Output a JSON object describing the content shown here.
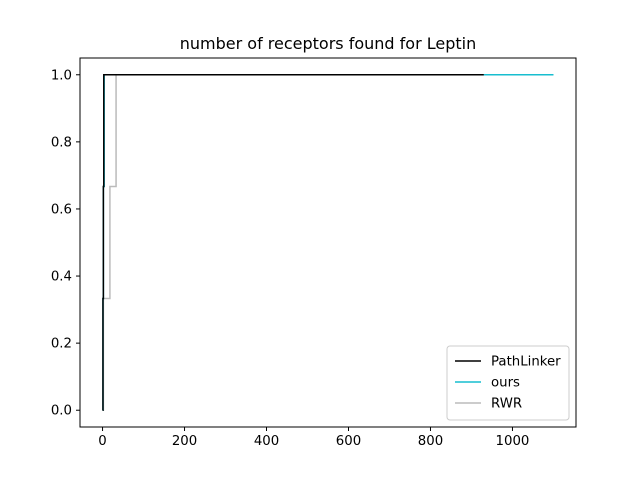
{
  "chart_data": {
    "type": "line",
    "title": "number of receptors found for Leptin",
    "xlabel": "",
    "ylabel": "",
    "xlim": [
      -55,
      1155
    ],
    "ylim": [
      -0.05,
      1.05
    ],
    "xticks": [
      0,
      200,
      400,
      600,
      800,
      1000
    ],
    "xtick_labels": [
      "0",
      "200",
      "400",
      "600",
      "800",
      "1000"
    ],
    "yticks": [
      0.0,
      0.2,
      0.4,
      0.6,
      0.8,
      1.0
    ],
    "ytick_labels": [
      "0.0",
      "0.2",
      "0.4",
      "0.6",
      "0.8",
      "1.0"
    ],
    "grid": false,
    "legend_position": "lower-right",
    "series": [
      {
        "name": "PathLinker",
        "color": "#000000",
        "x": [
          0,
          1,
          1,
          2,
          2,
          3,
          3,
          930
        ],
        "y": [
          0.0,
          0.0,
          0.333,
          0.333,
          0.667,
          0.667,
          1.0,
          1.0
        ]
      },
      {
        "name": "ours",
        "color": "#17becf",
        "x": [
          0,
          1,
          1,
          2,
          2,
          4,
          4,
          1100
        ],
        "y": [
          0.0,
          0.0,
          0.333,
          0.333,
          0.667,
          0.667,
          1.0,
          1.0
        ]
      },
      {
        "name": "RWR",
        "color": "#bbbbbb",
        "x": [
          0,
          2,
          2,
          18,
          18,
          33,
          33,
          1100
        ],
        "y": [
          0.0,
          0.0,
          0.333,
          0.333,
          0.667,
          0.667,
          1.0,
          1.0
        ]
      }
    ]
  }
}
